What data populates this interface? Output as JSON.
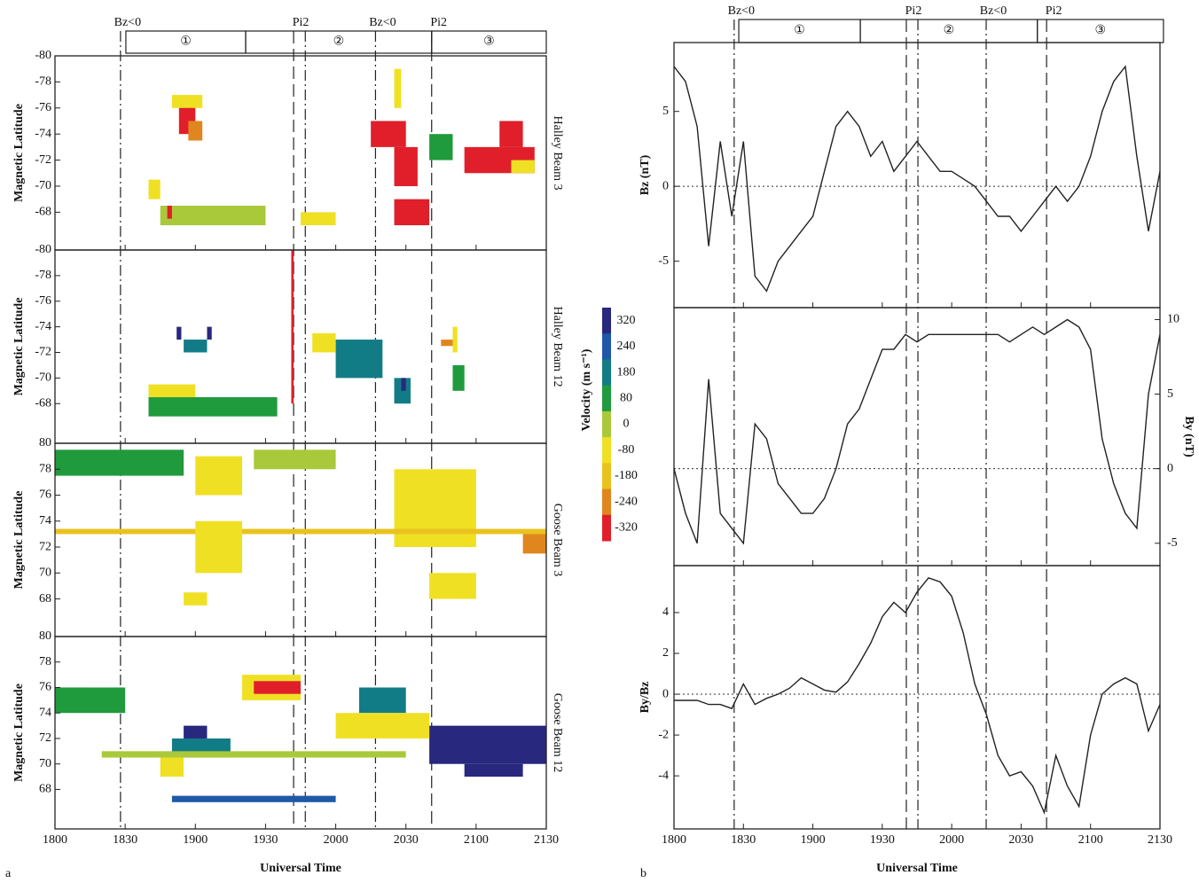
{
  "chart_data": [
    {
      "type": "timeline",
      "panel_label": "a",
      "xlabel": "Universal Time",
      "xlim": [
        1080,
        1290
      ],
      "xticks": [
        {
          "value": 1080,
          "label": "1800"
        },
        {
          "value": 1110,
          "label": "1830"
        },
        {
          "value": 1140,
          "label": "1900"
        },
        {
          "value": 1170,
          "label": "1930"
        },
        {
          "value": 1200,
          "label": "2000"
        },
        {
          "value": 1230,
          "label": "2030"
        },
        {
          "value": 1260,
          "label": "2100"
        },
        {
          "value": 1290,
          "label": "2130"
        }
      ],
      "events": [
        {
          "label": "Bz<0",
          "x": 1108,
          "style": "dashdot"
        },
        {
          "label": "Pi2",
          "x": 1182,
          "style": "dash"
        },
        {
          "label": null,
          "x": 1187,
          "style": "dashdot"
        },
        {
          "label": "Bz<0",
          "x": 1217,
          "style": "dashdot"
        },
        {
          "label": "Pi2",
          "x": 1241,
          "style": "dash"
        }
      ],
      "intervals": [
        {
          "label": "①",
          "x0": 1110.3,
          "x1": 1161.5
        },
        {
          "label": "②",
          "x0": 1161.5,
          "x1": 1241
        },
        {
          "label": "③",
          "x0": 1241,
          "x1": 1290
        }
      ]
    },
    {
      "type": "heatmap",
      "ylabel": "Magnetic Latitude",
      "side_label": "Halley Beam 3",
      "ylim": [
        -65.1,
        -80
      ],
      "yticks": [
        -80,
        -78,
        -76,
        -74,
        -72,
        -70,
        -68
      ],
      "patches": [
        {
          "t": [
            1133,
            1140
          ],
          "lat": [
            -76.5,
            -74
          ],
          "v": -320
        },
        {
          "t": [
            1130,
            1143
          ],
          "lat": [
            -77,
            -76
          ],
          "v": -80
        },
        {
          "t": [
            1137,
            1143
          ],
          "lat": [
            -75,
            -73.5
          ],
          "v": -240
        },
        {
          "t": [
            1125,
            1170
          ],
          "lat": [
            -68.5,
            -67
          ],
          "v": 0
        },
        {
          "t": [
            1128,
            1130
          ],
          "lat": [
            -68.5,
            -67.5
          ],
          "v": -320
        },
        {
          "t": [
            1120,
            1125
          ],
          "lat": [
            -70.5,
            -69
          ],
          "v": -80
        },
        {
          "t": [
            1185,
            1200
          ],
          "lat": [
            -68,
            -67
          ],
          "v": -80
        },
        {
          "t": [
            1215,
            1230
          ],
          "lat": [
            -75,
            -73
          ],
          "v": -320
        },
        {
          "t": [
            1225,
            1235
          ],
          "lat": [
            -73,
            -70
          ],
          "v": -320
        },
        {
          "t": [
            1225,
            1240
          ],
          "lat": [
            -69,
            -67
          ],
          "v": -320
        },
        {
          "t": [
            1225,
            1228
          ],
          "lat": [
            -79,
            -76
          ],
          "v": -80
        },
        {
          "t": [
            1240,
            1250
          ],
          "lat": [
            -74,
            -72
          ],
          "v": 80
        },
        {
          "t": [
            1255,
            1285
          ],
          "lat": [
            -73,
            -71
          ],
          "v": -320
        },
        {
          "t": [
            1270,
            1280
          ],
          "lat": [
            -75,
            -73
          ],
          "v": -320
        },
        {
          "t": [
            1275,
            1285
          ],
          "lat": [
            -72,
            -71
          ],
          "v": -80
        }
      ]
    },
    {
      "type": "heatmap",
      "ylabel": "Magnetic Latitude",
      "side_label": "Halley Beam 12",
      "ylim": [
        -64.9,
        -80
      ],
      "yticks": [
        -80,
        -78,
        -76,
        -74,
        -72,
        -70,
        -68
      ],
      "patches": [
        {
          "t": [
            1120,
            1175
          ],
          "lat": [
            -68.5,
            -67
          ],
          "v": 80
        },
        {
          "t": [
            1120,
            1140
          ],
          "lat": [
            -69.5,
            -68.5
          ],
          "v": -80
        },
        {
          "t": [
            1132,
            1134
          ],
          "lat": [
            -74,
            -73
          ],
          "v": 320
        },
        {
          "t": [
            1135,
            1145
          ],
          "lat": [
            -73,
            -72
          ],
          "v": 180
        },
        {
          "t": [
            1145,
            1147
          ],
          "lat": [
            -74,
            -73
          ],
          "v": 320
        },
        {
          "t": [
            1181,
            1182
          ],
          "lat": [
            -80,
            -68
          ],
          "v": -320
        },
        {
          "t": [
            1200,
            1220
          ],
          "lat": [
            -73,
            -70
          ],
          "v": 180
        },
        {
          "t": [
            1190,
            1200
          ],
          "lat": [
            -73.5,
            -72
          ],
          "v": -80
        },
        {
          "t": [
            1225,
            1232
          ],
          "lat": [
            -70,
            -68
          ],
          "v": 180
        },
        {
          "t": [
            1228,
            1230
          ],
          "lat": [
            -70,
            -69
          ],
          "v": 320
        },
        {
          "t": [
            1250,
            1255
          ],
          "lat": [
            -71,
            -69
          ],
          "v": 80
        },
        {
          "t": [
            1250,
            1252
          ],
          "lat": [
            -74,
            -72
          ],
          "v": -80
        },
        {
          "t": [
            1245,
            1250
          ],
          "lat": [
            -73,
            -72.5
          ],
          "v": -240
        }
      ]
    },
    {
      "type": "heatmap",
      "ylabel": "Magnetic Latitude",
      "side_label": "Goose Beam 3",
      "ylim": [
        65.1,
        80
      ],
      "yticks": [
        80,
        78,
        76,
        74,
        72,
        70,
        68
      ],
      "patches": [
        {
          "t": [
            1080,
            1135
          ],
          "lat": [
            77.5,
            79.5
          ],
          "v": 80
        },
        {
          "t": [
            1140,
            1160
          ],
          "lat": [
            76,
            79
          ],
          "v": -80
        },
        {
          "t": [
            1225,
            1260
          ],
          "lat": [
            72,
            78
          ],
          "v": -80
        },
        {
          "t": [
            1080,
            1290
          ],
          "lat": [
            73,
            73.4
          ],
          "v": -180
        },
        {
          "t": [
            1140,
            1160
          ],
          "lat": [
            70,
            74
          ],
          "v": -80
        },
        {
          "t": [
            1240,
            1260
          ],
          "lat": [
            68,
            70
          ],
          "v": -80
        },
        {
          "t": [
            1280,
            1290
          ],
          "lat": [
            71.5,
            73
          ],
          "v": -240
        },
        {
          "t": [
            1135,
            1145
          ],
          "lat": [
            67.5,
            68.5
          ],
          "v": -80
        },
        {
          "t": [
            1165,
            1200
          ],
          "lat": [
            78,
            79.5
          ],
          "v": 0
        }
      ]
    },
    {
      "type": "heatmap",
      "ylabel": "Magnetic Latitude",
      "side_label": "Goose Beam 12",
      "ylim": [
        64.9,
        80
      ],
      "yticks": [
        80,
        78,
        76,
        74,
        72,
        70,
        68
      ],
      "patches": [
        {
          "t": [
            1080,
            1095
          ],
          "lat": [
            75,
            76
          ],
          "v": 320
        },
        {
          "t": [
            1080,
            1110
          ],
          "lat": [
            74,
            76
          ],
          "v": 80
        },
        {
          "t": [
            1135,
            1145
          ],
          "lat": [
            71,
            73
          ],
          "v": 320
        },
        {
          "t": [
            1130,
            1155
          ],
          "lat": [
            70.5,
            72
          ],
          "v": 180
        },
        {
          "t": [
            1160,
            1185
          ],
          "lat": [
            75,
            77
          ],
          "v": -80
        },
        {
          "t": [
            1165,
            1185
          ],
          "lat": [
            75.5,
            76.5
          ],
          "v": -320
        },
        {
          "t": [
            1100,
            1230
          ],
          "lat": [
            70.5,
            71
          ],
          "v": 0
        },
        {
          "t": [
            1240,
            1290
          ],
          "lat": [
            70,
            73
          ],
          "v": 320
        },
        {
          "t": [
            1255,
            1280
          ],
          "lat": [
            69,
            70
          ],
          "v": 320
        },
        {
          "t": [
            1125,
            1135
          ],
          "lat": [
            69,
            70.5
          ],
          "v": -80
        },
        {
          "t": [
            1130,
            1200
          ],
          "lat": [
            67,
            67.5
          ],
          "v": 240
        },
        {
          "t": [
            1210,
            1230
          ],
          "lat": [
            74,
            76
          ],
          "v": 180
        },
        {
          "t": [
            1200,
            1240
          ],
          "lat": [
            72,
            74
          ],
          "v": -80
        }
      ]
    },
    {
      "type": "colorbar",
      "label": "Velocity (m s⁻¹)",
      "levels": [
        320,
        240,
        180,
        80,
        0,
        -80,
        -180,
        -240,
        -320
      ],
      "colors": [
        "#28287e",
        "#1f58a8",
        "#127c86",
        "#1f9a3c",
        "#a9c93a",
        "#f0e024",
        "#eac21e",
        "#e0861e",
        "#e01f2a"
      ]
    },
    {
      "type": "timeline",
      "panel_label": "b",
      "xlabel": "Universal Time",
      "xlim": [
        1080,
        1290
      ],
      "xticks": [
        {
          "value": 1080,
          "label": "1800"
        },
        {
          "value": 1110,
          "label": "1830"
        },
        {
          "value": 1140,
          "label": "1900"
        },
        {
          "value": 1170,
          "label": "1930"
        },
        {
          "value": 1200,
          "label": "2000"
        },
        {
          "value": 1230,
          "label": "2030"
        },
        {
          "value": 1260,
          "label": "2100"
        },
        {
          "value": 1290,
          "label": "2130"
        }
      ],
      "events": [
        {
          "label": "Bz<0",
          "x": 1106,
          "style": "dashdot"
        },
        {
          "label": "Pi2",
          "x": 1180.4,
          "style": "dash"
        },
        {
          "label": null,
          "x": 1185.4,
          "style": "dashdot"
        },
        {
          "label": "Bz<0",
          "x": 1214.9,
          "style": "dashdot"
        },
        {
          "label": "Pi2",
          "x": 1241,
          "style": "dash"
        }
      ],
      "intervals": [
        {
          "label": "①",
          "x0": 1108,
          "x1": 1160.5
        },
        {
          "label": "②",
          "x0": 1160.5,
          "x1": 1237
        },
        {
          "label": "③",
          "x0": 1237,
          "x1": 1291.5
        }
      ]
    },
    {
      "type": "line",
      "ylabel": "Bz (nT)",
      "axis_side": "left",
      "color": "#222",
      "zero_line": true,
      "ylim": [
        -8.1,
        9.6
      ],
      "yticks": [
        -5,
        0,
        5
      ],
      "x": [
        1080,
        1085,
        1090,
        1095,
        1100,
        1105,
        1110,
        1115,
        1120,
        1125,
        1130,
        1135,
        1140,
        1145,
        1150,
        1155,
        1160,
        1165,
        1170,
        1175,
        1180,
        1185,
        1190,
        1195,
        1200,
        1205,
        1210,
        1215,
        1220,
        1225,
        1230,
        1235,
        1240,
        1245,
        1250,
        1255,
        1260,
        1265,
        1270,
        1275,
        1280,
        1285,
        1290
      ],
      "values": [
        8,
        7,
        4,
        -4,
        3,
        -2,
        3,
        -6,
        -7,
        -5,
        -4,
        -3,
        -2,
        1,
        4,
        5,
        4,
        2,
        3,
        1,
        2,
        3,
        2,
        1,
        1,
        0.5,
        0,
        -1,
        -2,
        -2,
        -3,
        -2,
        -1,
        0,
        -1,
        0,
        2,
        5,
        7,
        8,
        2,
        -3,
        1
      ]
    },
    {
      "type": "line",
      "ylabel": "By (nT)",
      "axis_side": "right",
      "color": "#222",
      "zero_line": true,
      "ylim": [
        -6.5,
        10.8
      ],
      "yticks": [
        -5,
        0,
        5,
        10
      ],
      "x": [
        1080,
        1085,
        1090,
        1095,
        1100,
        1105,
        1110,
        1115,
        1120,
        1125,
        1130,
        1135,
        1140,
        1145,
        1150,
        1155,
        1160,
        1165,
        1170,
        1175,
        1180,
        1185,
        1190,
        1195,
        1200,
        1205,
        1210,
        1215,
        1220,
        1225,
        1230,
        1235,
        1240,
        1245,
        1250,
        1255,
        1260,
        1265,
        1270,
        1275,
        1280,
        1285,
        1290
      ],
      "values": [
        0,
        -3,
        -5,
        6,
        -3,
        -4,
        -5,
        3,
        2,
        -1,
        -2,
        -3,
        -3,
        -2,
        0,
        3,
        4,
        6,
        8,
        8,
        9,
        8.5,
        9,
        9,
        9,
        9,
        9,
        9,
        9,
        8.5,
        9,
        9.5,
        9,
        9.5,
        10,
        9.5,
        8,
        2,
        -1,
        -3,
        -4,
        5,
        9
      ]
    },
    {
      "type": "line",
      "ylabel": "By/Bz",
      "axis_side": "left",
      "color": "#222",
      "zero_line": true,
      "ylim": [
        -6.6,
        6.3
      ],
      "yticks": [
        -4,
        -2,
        0,
        2,
        4
      ],
      "x": [
        1080,
        1085,
        1090,
        1095,
        1100,
        1105,
        1110,
        1115,
        1120,
        1125,
        1130,
        1135,
        1140,
        1145,
        1150,
        1155,
        1160,
        1165,
        1170,
        1175,
        1180,
        1185,
        1190,
        1195,
        1200,
        1205,
        1210,
        1215,
        1220,
        1225,
        1230,
        1235,
        1240,
        1245,
        1250,
        1255,
        1260,
        1265,
        1270,
        1275,
        1280,
        1285,
        1290
      ],
      "values": [
        -0.3,
        -0.3,
        -0.3,
        -0.5,
        -0.5,
        -0.7,
        0.5,
        -0.5,
        -0.2,
        0,
        0.3,
        0.8,
        0.5,
        0.2,
        0.1,
        0.6,
        1.5,
        2.5,
        3.8,
        4.5,
        4,
        5,
        5.7,
        5.5,
        4.8,
        3,
        0.5,
        -1,
        -3,
        -4,
        -3.8,
        -4.5,
        -5.8,
        -3,
        -4.5,
        -5.5,
        -2,
        0,
        0.5,
        0.8,
        0.5,
        -1.8,
        -0.5
      ]
    }
  ]
}
